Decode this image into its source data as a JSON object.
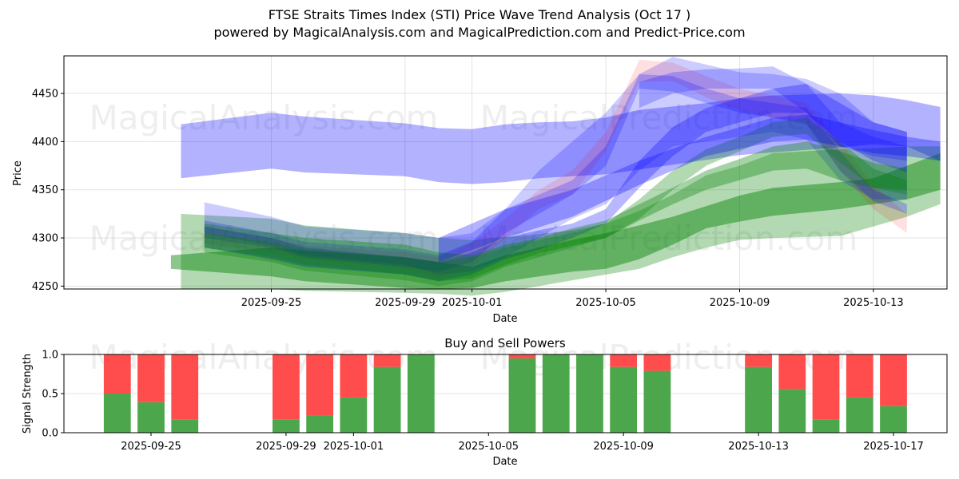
{
  "title": "FTSE Straits Times Index (STI) Price Wave Trend Analysis (Oct 17 )",
  "subtitle": "powered by MagicalAnalysis.com and MagicalPrediction.com and Predict-Price.com",
  "watermarks": [
    "MagicalAnalysis.com",
    "MagicalPrediction.com"
  ],
  "chart_data": [
    {
      "type": "area",
      "title": "",
      "xlabel": "Date",
      "ylabel": "Price",
      "ylim": [
        4247,
        4489
      ],
      "yticks": [
        4250,
        4300,
        4350,
        4400,
        4450
      ],
      "xticks": [
        "2025-09-25",
        "2025-09-29",
        "2025-10-01",
        "2025-10-05",
        "2025-10-09",
        "2025-10-13",
        "2025-10-17"
      ],
      "x_origin": "2025-09-22",
      "xlim_days": [
        -3.2,
        23.2
      ],
      "grid": true,
      "colors": {
        "blue": "#0000ff",
        "green": "#008000",
        "red": "#ff0000"
      },
      "bands": [
        {
          "name": "blue-wide-upper",
          "color": "blue",
          "alpha": 0.3,
          "x": [
            0.3,
            3,
            4,
            7,
            8,
            9,
            10,
            11,
            12,
            13,
            14,
            16,
            17,
            18,
            20,
            21,
            22,
            23
          ],
          "upper": [
            4418,
            4430,
            4426,
            4419,
            4414,
            4413,
            4418,
            4420,
            4421,
            4425,
            4433,
            4440,
            4445,
            4448,
            4450,
            4448,
            4443,
            4436
          ],
          "lower": [
            4362,
            4372,
            4368,
            4364,
            4358,
            4356,
            4358,
            4362,
            4364,
            4366,
            4371,
            4381,
            4386,
            4389,
            4394,
            4397,
            4395,
            4380
          ]
        },
        {
          "name": "green-light-wide",
          "color": "green",
          "alpha": 0.3,
          "x": [
            0.3,
            3,
            4,
            7,
            8,
            9,
            10,
            11,
            12,
            13,
            14,
            15,
            16,
            17,
            18,
            20,
            21,
            22,
            23
          ],
          "upper": [
            4325,
            4320,
            4313,
            4305,
            4300,
            4298,
            4301,
            4304,
            4308,
            4315,
            4328,
            4345,
            4365,
            4375,
            4388,
            4392,
            4393,
            4395,
            4395
          ],
          "lower": [
            4247,
            4247,
            4245,
            4243,
            4242,
            4240,
            4244,
            4250,
            4256,
            4262,
            4268,
            4280,
            4290,
            4298,
            4300,
            4302,
            4312,
            4322,
            4335
          ]
        },
        {
          "name": "green-mid-band",
          "color": "green",
          "alpha": 0.45,
          "x": [
            0,
            3,
            4,
            7,
            8,
            9,
            10,
            11,
            12,
            13,
            14,
            15,
            16,
            17,
            18,
            20,
            21,
            22,
            23
          ],
          "upper": [
            4282,
            4290,
            4287,
            4280,
            4275,
            4270,
            4282,
            4290,
            4298,
            4305,
            4313,
            4322,
            4333,
            4344,
            4352,
            4358,
            4362,
            4375,
            4388
          ],
          "lower": [
            4268,
            4260,
            4255,
            4248,
            4247,
            4248,
            4255,
            4260,
            4265,
            4268,
            4278,
            4293,
            4310,
            4317,
            4323,
            4330,
            4335,
            4340,
            4350
          ]
        },
        {
          "name": "wave-blue-1",
          "color": "blue",
          "alpha": 0.2,
          "x": [
            1,
            3,
            4,
            7,
            8,
            9,
            10,
            11,
            12,
            13,
            14,
            15,
            16,
            17,
            18,
            19,
            20,
            21,
            22
          ],
          "upper": [
            4337,
            4322,
            4312,
            4305,
            4300,
            4305,
            4330,
            4370,
            4400,
            4430,
            4470,
            4488,
            4480,
            4472,
            4470,
            4465,
            4450,
            4420,
            4410
          ],
          "lower": [
            4305,
            4292,
            4282,
            4272,
            4262,
            4265,
            4280,
            4300,
            4320,
            4335,
            4370,
            4395,
            4400,
            4405,
            4410,
            4402,
            4360,
            4340,
            4340
          ]
        },
        {
          "name": "wave-red-1",
          "color": "red",
          "alpha": 0.12,
          "x": [
            1,
            3,
            4,
            7,
            8,
            9,
            10,
            11,
            12,
            13,
            14,
            15,
            16,
            17,
            18,
            19,
            20,
            21,
            22
          ],
          "upper": [
            4312,
            4300,
            4292,
            4285,
            4280,
            4295,
            4320,
            4350,
            4370,
            4410,
            4485,
            4482,
            4468,
            4455,
            4448,
            4440,
            4400,
            4355,
            4325
          ],
          "lower": [
            4294,
            4285,
            4278,
            4268,
            4258,
            4270,
            4300,
            4330,
            4345,
            4390,
            4462,
            4463,
            4446,
            4432,
            4425,
            4420,
            4370,
            4330,
            4305
          ]
        },
        {
          "name": "wave-purple-2",
          "color": "blue",
          "alpha": 0.22,
          "x": [
            1,
            3,
            4,
            7,
            8,
            9,
            10,
            11,
            12,
            13,
            14,
            15,
            16,
            17,
            18,
            19,
            20,
            21,
            22
          ],
          "upper": [
            4318,
            4305,
            4296,
            4288,
            4282,
            4296,
            4330,
            4345,
            4360,
            4395,
            4470,
            4468,
            4455,
            4445,
            4440,
            4435,
            4390,
            4350,
            4335
          ],
          "lower": [
            4300,
            4290,
            4280,
            4270,
            4265,
            4275,
            4305,
            4325,
            4345,
            4375,
            4455,
            4452,
            4440,
            4430,
            4425,
            4418,
            4370,
            4338,
            4325
          ]
        },
        {
          "name": "wave-blue-3",
          "color": "blue",
          "alpha": 0.28,
          "x": [
            1,
            3,
            4,
            7,
            8,
            9,
            10,
            11,
            12,
            13,
            14,
            15,
            16,
            17,
            18,
            19,
            20,
            21,
            22
          ],
          "upper": [
            4312,
            4300,
            4290,
            4280,
            4275,
            4285,
            4300,
            4308,
            4315,
            4330,
            4380,
            4415,
            4435,
            4445,
            4455,
            4460,
            4440,
            4420,
            4410
          ],
          "lower": [
            4290,
            4278,
            4270,
            4262,
            4255,
            4262,
            4278,
            4288,
            4300,
            4315,
            4352,
            4385,
            4410,
            4420,
            4430,
            4430,
            4400,
            4380,
            4368
          ]
        },
        {
          "name": "wave-green-dark-1",
          "color": "green",
          "alpha": 0.35,
          "x": [
            1,
            3,
            4,
            7,
            8,
            9,
            10,
            11,
            12,
            13,
            14,
            15,
            16,
            17,
            18,
            19,
            20,
            21,
            22
          ],
          "upper": [
            4315,
            4305,
            4300,
            4293,
            4285,
            4282,
            4293,
            4300,
            4310,
            4318,
            4335,
            4352,
            4370,
            4382,
            4395,
            4400,
            4390,
            4378,
            4372
          ],
          "lower": [
            4290,
            4280,
            4272,
            4262,
            4255,
            4258,
            4272,
            4284,
            4292,
            4300,
            4318,
            4335,
            4350,
            4360,
            4370,
            4372,
            4360,
            4352,
            4350
          ]
        },
        {
          "name": "wave-teal-2",
          "color": "green",
          "alpha": 0.3,
          "x": [
            1,
            3,
            4,
            7,
            8,
            9,
            10,
            11,
            12,
            13,
            14,
            15,
            16,
            17,
            18,
            19,
            20,
            21,
            22
          ],
          "upper": [
            4305,
            4296,
            4288,
            4280,
            4275,
            4280,
            4290,
            4298,
            4305,
            4315,
            4340,
            4370,
            4392,
            4405,
            4420,
            4425,
            4400,
            4372,
            4360
          ],
          "lower": [
            4285,
            4275,
            4266,
            4256,
            4250,
            4255,
            4270,
            4280,
            4290,
            4300,
            4320,
            4350,
            4375,
            4390,
            4405,
            4408,
            4378,
            4352,
            4345
          ]
        },
        {
          "name": "blue-upper-late",
          "color": "blue",
          "alpha": 0.22,
          "x": [
            14,
            15,
            16,
            17,
            18,
            19,
            20,
            21,
            22
          ],
          "upper": [
            4462,
            4472,
            4475,
            4476,
            4478,
            4460,
            4420,
            4405,
            4395
          ],
          "lower": [
            4435,
            4450,
            4455,
            4455,
            4455,
            4430,
            4395,
            4385,
            4380
          ]
        },
        {
          "name": "blue-dark-late",
          "color": "blue",
          "alpha": 0.3,
          "x": [
            8,
            10,
            12,
            14,
            16,
            18,
            19,
            20,
            21,
            22,
            23
          ],
          "upper": [
            4300,
            4330,
            4350,
            4380,
            4405,
            4425,
            4428,
            4420,
            4412,
            4405,
            4400
          ],
          "lower": [
            4275,
            4300,
            4322,
            4355,
            4385,
            4400,
            4402,
            4395,
            4388,
            4385,
            4380
          ]
        }
      ]
    },
    {
      "type": "bar",
      "title": "Buy and Sell Powers",
      "xlabel": "Date",
      "ylabel": "Signal Strength",
      "ylim": [
        0,
        1
      ],
      "yticks": [
        "0.0",
        "0.5",
        "1.0"
      ],
      "xticks": [
        "2025-09-25",
        "2025-09-29",
        "2025-10-01",
        "2025-10-05",
        "2025-10-09",
        "2025-10-13",
        "2025-10-17"
      ],
      "grid": true,
      "colors": {
        "buy": "#4ca64c",
        "sell": "#ff4c4c"
      },
      "categories": [
        "2025-09-24",
        "2025-09-25",
        "2025-09-26",
        "2025-09-29",
        "2025-09-30",
        "2025-10-01",
        "2025-10-02",
        "2025-10-03",
        "2025-10-06",
        "2025-10-07",
        "2025-10-08",
        "2025-10-09",
        "2025-10-10",
        "2025-10-13",
        "2025-10-14",
        "2025-10-15",
        "2025-10-16",
        "2025-10-17"
      ],
      "series": [
        {
          "name": "Buy",
          "values": [
            0.5,
            0.39,
            0.17,
            0.17,
            0.22,
            0.45,
            0.84,
            1.0,
            0.95,
            1.0,
            1.0,
            0.84,
            0.79,
            0.84,
            0.56,
            0.17,
            0.45,
            0.34
          ]
        },
        {
          "name": "Sell",
          "values": [
            0.5,
            0.61,
            0.83,
            0.83,
            0.78,
            0.55,
            0.16,
            0.0,
            0.05,
            0.0,
            0.0,
            0.16,
            0.21,
            0.16,
            0.44,
            0.83,
            0.55,
            0.66
          ]
        }
      ]
    }
  ]
}
